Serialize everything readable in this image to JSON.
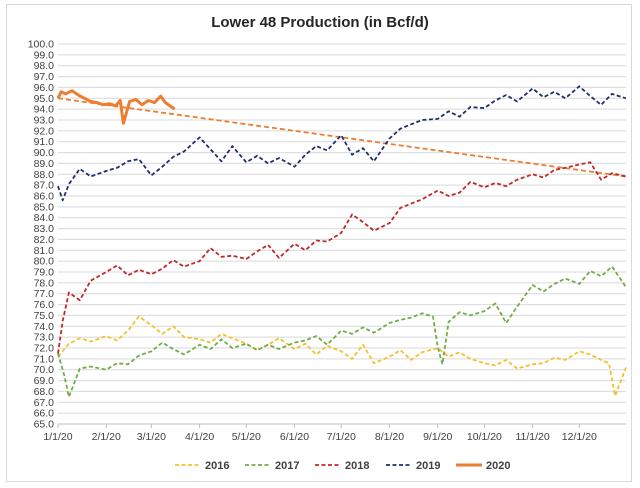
{
  "chart_data": {
    "type": "line",
    "title": "Lower 48 Production (in Bcf/d)",
    "xlabel": "",
    "ylabel": "",
    "ylim": [
      65.0,
      100.0
    ],
    "ytick_step": 1.0,
    "ytick_labels": [
      "65.0",
      "66.0",
      "67.0",
      "68.0",
      "69.0",
      "70.0",
      "71.0",
      "72.0",
      "73.0",
      "74.0",
      "75.0",
      "76.0",
      "77.0",
      "78.0",
      "79.0",
      "80.0",
      "81.0",
      "82.0",
      "83.0",
      "84.0",
      "85.0",
      "86.0",
      "87.0",
      "88.0",
      "89.0",
      "90.0",
      "91.0",
      "92.0",
      "93.0",
      "94.0",
      "95.0",
      "96.0",
      "97.0",
      "98.0",
      "99.0",
      "100.0"
    ],
    "xlim": [
      "2020-01-01",
      "2020-12-31"
    ],
    "x_tick_labels": [
      "1/1/20",
      "2/1/20",
      "3/1/20",
      "4/1/20",
      "5/1/20",
      "6/1/20",
      "7/1/20",
      "8/1/20",
      "9/1/20",
      "10/1/20",
      "11/1/20",
      "12/1/20"
    ],
    "x_tick_dates": [
      "2020-01-01",
      "2020-02-01",
      "2020-03-01",
      "2020-04-01",
      "2020-05-01",
      "2020-06-01",
      "2020-07-01",
      "2020-08-01",
      "2020-09-01",
      "2020-10-01",
      "2020-11-01",
      "2020-12-01"
    ],
    "grid": "horizontal",
    "legend_position": "bottom",
    "series": [
      {
        "name": "2016",
        "color": "#f2c12e",
        "style": "dashed",
        "x": [
          "2020-01-01",
          "2020-01-08",
          "2020-01-15",
          "2020-01-22",
          "2020-02-01",
          "2020-02-08",
          "2020-02-15",
          "2020-02-22",
          "2020-03-01",
          "2020-03-08",
          "2020-03-15",
          "2020-03-22",
          "2020-04-01",
          "2020-04-08",
          "2020-04-15",
          "2020-04-22",
          "2020-05-01",
          "2020-05-08",
          "2020-05-15",
          "2020-05-22",
          "2020-06-01",
          "2020-06-08",
          "2020-06-15",
          "2020-06-22",
          "2020-07-01",
          "2020-07-08",
          "2020-07-15",
          "2020-07-22",
          "2020-08-01",
          "2020-08-08",
          "2020-08-15",
          "2020-08-22",
          "2020-09-01",
          "2020-09-08",
          "2020-09-15",
          "2020-09-22",
          "2020-10-01",
          "2020-10-08",
          "2020-10-15",
          "2020-10-22",
          "2020-11-01",
          "2020-11-08",
          "2020-11-15",
          "2020-11-22",
          "2020-12-01",
          "2020-12-08",
          "2020-12-15",
          "2020-12-20",
          "2020-12-24",
          "2020-12-31"
        ],
        "values": [
          71.2,
          72.4,
          72.9,
          72.6,
          73.1,
          72.7,
          73.6,
          74.9,
          74.1,
          73.3,
          74.0,
          73.0,
          72.8,
          72.5,
          73.3,
          72.9,
          72.4,
          71.8,
          72.3,
          72.9,
          71.9,
          72.4,
          71.4,
          72.2,
          71.7,
          71.0,
          72.3,
          70.6,
          71.2,
          71.8,
          70.9,
          71.6,
          72.0,
          71.2,
          71.6,
          71.0,
          70.6,
          70.4,
          70.9,
          70.1,
          70.5,
          70.6,
          71.1,
          70.9,
          71.7,
          71.4,
          70.9,
          70.6,
          67.6,
          70.2
        ]
      },
      {
        "name": "2017",
        "color": "#70ad47",
        "style": "dashed",
        "x": [
          "2020-01-01",
          "2020-01-05",
          "2020-01-08",
          "2020-01-15",
          "2020-01-22",
          "2020-02-01",
          "2020-02-08",
          "2020-02-15",
          "2020-02-22",
          "2020-03-01",
          "2020-03-08",
          "2020-03-15",
          "2020-03-22",
          "2020-04-01",
          "2020-04-08",
          "2020-04-15",
          "2020-04-22",
          "2020-05-01",
          "2020-05-08",
          "2020-05-15",
          "2020-05-22",
          "2020-06-01",
          "2020-06-08",
          "2020-06-15",
          "2020-06-22",
          "2020-07-01",
          "2020-07-08",
          "2020-07-15",
          "2020-07-22",
          "2020-08-01",
          "2020-08-08",
          "2020-08-15",
          "2020-08-22",
          "2020-08-29",
          "2020-09-01",
          "2020-09-04",
          "2020-09-08",
          "2020-09-15",
          "2020-09-22",
          "2020-10-01",
          "2020-10-08",
          "2020-10-15",
          "2020-10-22",
          "2020-11-01",
          "2020-11-08",
          "2020-11-15",
          "2020-11-22",
          "2020-12-01",
          "2020-12-08",
          "2020-12-15",
          "2020-12-22",
          "2020-12-31"
        ],
        "values": [
          71.5,
          69.5,
          67.5,
          70.1,
          70.3,
          70.0,
          70.6,
          70.5,
          71.3,
          71.7,
          72.5,
          71.9,
          71.4,
          72.3,
          71.9,
          72.8,
          72.0,
          72.4,
          71.8,
          72.3,
          71.9,
          72.5,
          72.7,
          73.1,
          72.3,
          73.6,
          73.3,
          73.9,
          73.4,
          74.3,
          74.6,
          74.8,
          75.2,
          74.9,
          72.1,
          70.5,
          74.4,
          75.3,
          75.0,
          75.4,
          76.1,
          74.3,
          75.8,
          77.8,
          77.2,
          77.9,
          78.4,
          77.9,
          79.1,
          78.6,
          79.5,
          77.6
        ]
      },
      {
        "name": "2018",
        "color": "#c0282c",
        "style": "dashed",
        "x": [
          "2020-01-01",
          "2020-01-04",
          "2020-01-08",
          "2020-01-15",
          "2020-01-22",
          "2020-02-01",
          "2020-02-08",
          "2020-02-15",
          "2020-02-22",
          "2020-03-01",
          "2020-03-08",
          "2020-03-15",
          "2020-03-22",
          "2020-04-01",
          "2020-04-08",
          "2020-04-15",
          "2020-04-22",
          "2020-05-01",
          "2020-05-08",
          "2020-05-15",
          "2020-05-22",
          "2020-06-01",
          "2020-06-08",
          "2020-06-15",
          "2020-06-22",
          "2020-07-01",
          "2020-07-08",
          "2020-07-15",
          "2020-07-22",
          "2020-08-01",
          "2020-08-08",
          "2020-08-15",
          "2020-08-22",
          "2020-09-01",
          "2020-09-08",
          "2020-09-15",
          "2020-09-22",
          "2020-10-01",
          "2020-10-08",
          "2020-10-15",
          "2020-10-22",
          "2020-11-01",
          "2020-11-08",
          "2020-11-15",
          "2020-11-22",
          "2020-12-01",
          "2020-12-08",
          "2020-12-15",
          "2020-12-22",
          "2020-12-31"
        ],
        "values": [
          71.5,
          74.5,
          77.1,
          76.4,
          78.2,
          79.0,
          79.6,
          78.7,
          79.2,
          78.8,
          79.3,
          80.1,
          79.5,
          80.0,
          81.2,
          80.4,
          80.5,
          80.2,
          80.9,
          81.5,
          80.3,
          81.6,
          81.0,
          81.9,
          81.8,
          82.6,
          84.3,
          83.6,
          82.8,
          83.5,
          84.9,
          85.3,
          85.7,
          86.5,
          86.0,
          86.3,
          87.3,
          86.8,
          87.2,
          86.9,
          87.5,
          88.0,
          87.7,
          88.4,
          88.6,
          88.9,
          89.1,
          87.5,
          88.1,
          87.8
        ]
      },
      {
        "name": "2019",
        "color": "#1f2f6e",
        "style": "dashed",
        "x": [
          "2020-01-01",
          "2020-01-04",
          "2020-01-08",
          "2020-01-15",
          "2020-01-22",
          "2020-02-01",
          "2020-02-08",
          "2020-02-15",
          "2020-02-22",
          "2020-03-01",
          "2020-03-08",
          "2020-03-15",
          "2020-03-22",
          "2020-04-01",
          "2020-04-08",
          "2020-04-15",
          "2020-04-22",
          "2020-05-01",
          "2020-05-08",
          "2020-05-15",
          "2020-05-22",
          "2020-06-01",
          "2020-06-08",
          "2020-06-15",
          "2020-06-22",
          "2020-07-01",
          "2020-07-08",
          "2020-07-15",
          "2020-07-22",
          "2020-08-01",
          "2020-08-08",
          "2020-08-15",
          "2020-08-22",
          "2020-09-01",
          "2020-09-08",
          "2020-09-15",
          "2020-09-22",
          "2020-10-01",
          "2020-10-08",
          "2020-10-15",
          "2020-10-22",
          "2020-11-01",
          "2020-11-08",
          "2020-11-15",
          "2020-11-22",
          "2020-12-01",
          "2020-12-08",
          "2020-12-15",
          "2020-12-22",
          "2020-12-31"
        ],
        "values": [
          86.9,
          85.6,
          87.1,
          88.5,
          87.8,
          88.3,
          88.6,
          89.2,
          89.4,
          87.9,
          88.7,
          89.6,
          90.1,
          91.4,
          90.3,
          89.2,
          90.6,
          89.1,
          89.7,
          89.0,
          89.5,
          88.7,
          89.8,
          90.6,
          90.2,
          91.6,
          89.8,
          90.4,
          89.2,
          91.3,
          92.2,
          92.6,
          93.0,
          93.1,
          93.8,
          93.3,
          94.2,
          94.1,
          94.8,
          95.3,
          94.7,
          95.9,
          95.1,
          95.6,
          95.0,
          96.1,
          95.2,
          94.4,
          95.4,
          95.0
        ]
      },
      {
        "name": "2020",
        "color": "#ed7d31",
        "style": "solid",
        "x": [
          "2020-01-01",
          "2020-01-03",
          "2020-01-06",
          "2020-01-10",
          "2020-01-14",
          "2020-01-18",
          "2020-01-22",
          "2020-01-26",
          "2020-01-30",
          "2020-02-03",
          "2020-02-07",
          "2020-02-10",
          "2020-02-12",
          "2020-02-16",
          "2020-02-20",
          "2020-02-24",
          "2020-02-28",
          "2020-03-03",
          "2020-03-07",
          "2020-03-10",
          "2020-03-13",
          "2020-03-16"
        ],
        "values": [
          95.0,
          95.6,
          95.4,
          95.7,
          95.3,
          95.0,
          94.7,
          94.6,
          94.4,
          94.5,
          94.3,
          94.8,
          92.7,
          94.7,
          94.9,
          94.4,
          94.8,
          94.6,
          95.2,
          94.6,
          94.3,
          94.0
        ]
      }
    ],
    "trendline": {
      "series": "2020",
      "color": "#ed7d31",
      "style": "dashed",
      "x": [
        "2020-01-01",
        "2020-12-31"
      ],
      "values": [
        95.0,
        87.8
      ]
    }
  }
}
